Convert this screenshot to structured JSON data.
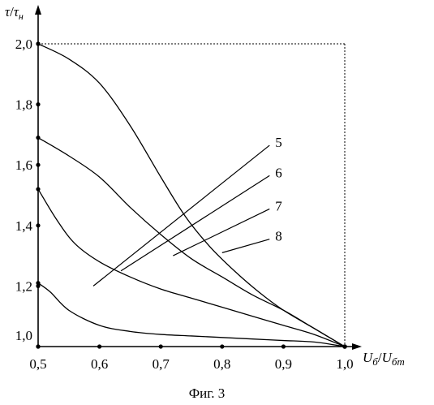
{
  "chart_data": {
    "type": "line",
    "title": "",
    "caption": "Фиг. 3",
    "xlabel": "Uб/Uбm",
    "xlabel_parts": {
      "num": "U",
      "num_sub": "б",
      "den": "U",
      "den_sub": "бm"
    },
    "ylabel": "τ/τн",
    "ylabel_parts": {
      "num": "τ",
      "den": "τ",
      "den_sub": "н"
    },
    "xlim": [
      0.5,
      1.0
    ],
    "ylim": [
      1.0,
      2.0
    ],
    "x_ticks": [
      0.5,
      0.6,
      0.7,
      0.8,
      0.9,
      1.0
    ],
    "x_tick_labels": [
      "0,5",
      "0,6",
      "0,7",
      "0,8",
      "0,9",
      "1,0"
    ],
    "y_ticks": [
      1.0,
      1.2,
      1.4,
      1.6,
      1.8,
      2.0
    ],
    "y_tick_labels": [
      "1,0",
      "1,2",
      "1,4",
      "1,6",
      "1,8",
      "2,0"
    ],
    "grid": false,
    "limit_box": {
      "x": 1.0,
      "y": 2.0
    },
    "series": [
      {
        "name": "5",
        "x": [
          0.5,
          0.52,
          0.55,
          0.6,
          0.65,
          0.7,
          0.75,
          0.8,
          0.85,
          0.9,
          0.95,
          1.0
        ],
        "y": [
          1.21,
          1.18,
          1.12,
          1.07,
          1.05,
          1.04,
          1.035,
          1.03,
          1.025,
          1.02,
          1.015,
          1.0
        ],
        "label_at": [
          0.59,
          1.2
        ],
        "label_pos": [
          0.88,
          1.67
        ]
      },
      {
        "name": "6",
        "x": [
          0.5,
          0.53,
          0.56,
          0.6,
          0.65,
          0.7,
          0.75,
          0.8,
          0.85,
          0.9,
          0.95,
          1.0
        ],
        "y": [
          1.52,
          1.42,
          1.34,
          1.28,
          1.23,
          1.19,
          1.16,
          1.13,
          1.1,
          1.07,
          1.04,
          1.0
        ],
        "label_at": [
          0.635,
          1.25
        ],
        "label_pos": [
          0.88,
          1.57
        ]
      },
      {
        "name": "7",
        "x": [
          0.5,
          0.55,
          0.6,
          0.65,
          0.7,
          0.75,
          0.8,
          0.85,
          0.9,
          0.95,
          1.0
        ],
        "y": [
          1.69,
          1.63,
          1.56,
          1.46,
          1.37,
          1.29,
          1.23,
          1.17,
          1.12,
          1.06,
          1.0
        ],
        "label_at": [
          0.72,
          1.3
        ],
        "label_pos": [
          0.88,
          1.46
        ]
      },
      {
        "name": "8",
        "x": [
          0.5,
          0.55,
          0.6,
          0.65,
          0.7,
          0.74,
          0.78,
          0.82,
          0.86,
          0.9,
          0.95,
          1.0
        ],
        "y": [
          2.0,
          1.95,
          1.87,
          1.73,
          1.56,
          1.43,
          1.33,
          1.25,
          1.18,
          1.12,
          1.06,
          1.0
        ],
        "label_at": [
          0.8,
          1.31
        ],
        "label_pos": [
          0.88,
          1.36
        ]
      }
    ]
  }
}
